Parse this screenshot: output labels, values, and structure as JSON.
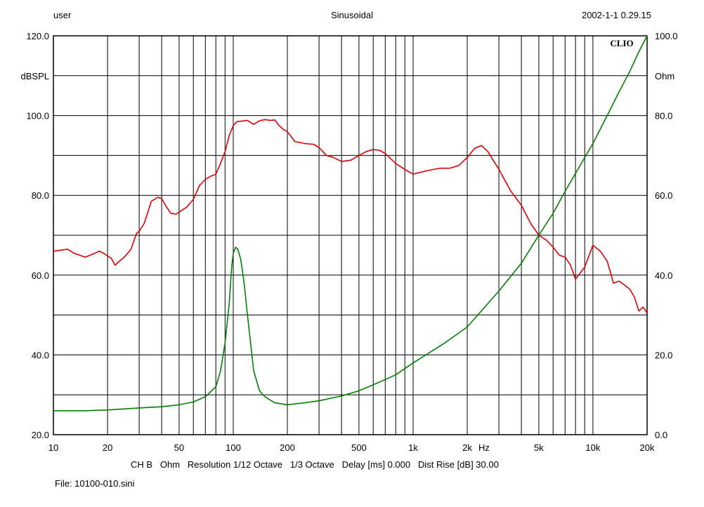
{
  "header": {
    "user": "user",
    "mode": "Sinusoidal",
    "datetime": "2002-1-1 0.29.15"
  },
  "footer": {
    "settings": "CH B   Ohm   Resolution 1/12 Octave   1/3 Octave   Delay [ms] 0.000   Dist Rise [dB] 30.00",
    "file": "File: 10100-010.sini"
  },
  "logo": "CLIO",
  "colors": {
    "spl": "#dd0000",
    "impedance": "#008000",
    "grid": "#000000"
  },
  "chart_data": {
    "type": "line",
    "x_scale": "log",
    "xlim": [
      10,
      20000
    ],
    "x_unit": "Hz",
    "x_ticks": [
      {
        "value": 10,
        "label": "10"
      },
      {
        "value": 20,
        "label": "20"
      },
      {
        "value": 50,
        "label": "50"
      },
      {
        "value": 100,
        "label": "100"
      },
      {
        "value": 200,
        "label": "200"
      },
      {
        "value": 500,
        "label": "500"
      },
      {
        "value": 1000,
        "label": "1k"
      },
      {
        "value": 2000,
        "label": "2k"
      },
      {
        "value": 5000,
        "label": "5k"
      },
      {
        "value": 10000,
        "label": "10k"
      },
      {
        "value": 20000,
        "label": "20k"
      }
    ],
    "y_left": {
      "unit": "dBSPL",
      "ylim": [
        20,
        120
      ],
      "ticks": [
        {
          "value": 120,
          "label": "120.0"
        },
        {
          "value": 100,
          "label": "100.0"
        },
        {
          "value": 80,
          "label": "80.0"
        },
        {
          "value": 60,
          "label": "60.0"
        },
        {
          "value": 40,
          "label": "40.0"
        },
        {
          "value": 20,
          "label": "20.0"
        }
      ]
    },
    "y_right": {
      "unit": "Ohm",
      "ylim": [
        0,
        100
      ],
      "ticks": [
        {
          "value": 100,
          "label": "100.0"
        },
        {
          "value": 80,
          "label": "80.0"
        },
        {
          "value": 60,
          "label": "60.0"
        },
        {
          "value": 40,
          "label": "40.0"
        },
        {
          "value": 20,
          "label": "20.0"
        },
        {
          "value": 0,
          "label": "0.0"
        }
      ]
    },
    "grid": true,
    "series": [
      {
        "axis": "left",
        "color": "#dd0000",
        "x": [
          10,
          12,
          13,
          14,
          15,
          16,
          17,
          18,
          19,
          20,
          21,
          22,
          23,
          25,
          27,
          29,
          30,
          32,
          35,
          38,
          40,
          42,
          45,
          48,
          50,
          55,
          60,
          65,
          70,
          75,
          80,
          85,
          90,
          95,
          100,
          105,
          110,
          120,
          130,
          140,
          150,
          160,
          170,
          180,
          190,
          200,
          220,
          250,
          280,
          300,
          330,
          360,
          400,
          450,
          500,
          550,
          600,
          650,
          700,
          800,
          900,
          1000,
          1100,
          1200,
          1400,
          1600,
          1800,
          2000,
          2200,
          2400,
          2600,
          3000,
          3500,
          4000,
          4500,
          5000,
          5500,
          6000,
          6500,
          7000,
          7500,
          8000,
          9000,
          10000,
          11000,
          12000,
          13000,
          14000,
          15000,
          16000,
          17000,
          18000,
          19000,
          20000
        ],
        "values": [
          66,
          66.5,
          65.5,
          65,
          64.5,
          65,
          65.5,
          66,
          65.5,
          64.8,
          64.2,
          62.5,
          63.3,
          64.7,
          66.5,
          70.5,
          71,
          73,
          78.5,
          79.5,
          79.2,
          77.5,
          75.5,
          75.3,
          75.8,
          77,
          79,
          82.5,
          84,
          84.8,
          85.3,
          88,
          91,
          95,
          97.5,
          98.5,
          98.6,
          98.8,
          97.8,
          98.7,
          99,
          98.8,
          98.9,
          97.5,
          96.5,
          96,
          93.5,
          93,
          92.8,
          92,
          90,
          89.5,
          88.5,
          88.8,
          90,
          91,
          91.5,
          91.3,
          90.5,
          88,
          86.5,
          85.3,
          85.8,
          86.2,
          86.8,
          86.8,
          87.5,
          89.5,
          91.8,
          92.5,
          91,
          86.5,
          81,
          77.5,
          73,
          70,
          68.8,
          67,
          65,
          64.5,
          62.5,
          59,
          62,
          67.5,
          66,
          63.5,
          58,
          58.5,
          57.5,
          56.5,
          54.5,
          51,
          52,
          50.5
        ]
      },
      {
        "axis": "right",
        "color": "#008000",
        "x": [
          10,
          15,
          20,
          30,
          40,
          50,
          60,
          70,
          80,
          85,
          90,
          95,
          98,
          100,
          103,
          106,
          110,
          115,
          120,
          130,
          140,
          150,
          170,
          200,
          250,
          300,
          400,
          500,
          600,
          800,
          1000,
          1500,
          2000,
          3000,
          4000,
          5000,
          6000,
          7000,
          8000,
          10000,
          12000,
          14000,
          16000,
          18000,
          20000
        ],
        "values": [
          6,
          6,
          6.2,
          6.7,
          7,
          7.5,
          8.2,
          9.5,
          12,
          16,
          23,
          33,
          42,
          45.5,
          47,
          46.5,
          44,
          38,
          30,
          16,
          11,
          9.5,
          8,
          7.5,
          8,
          8.5,
          9.7,
          11,
          12.5,
          15,
          18,
          23,
          27,
          36,
          43,
          50,
          55.5,
          61,
          65.5,
          73,
          80,
          86,
          91,
          96,
          100
        ]
      }
    ]
  }
}
